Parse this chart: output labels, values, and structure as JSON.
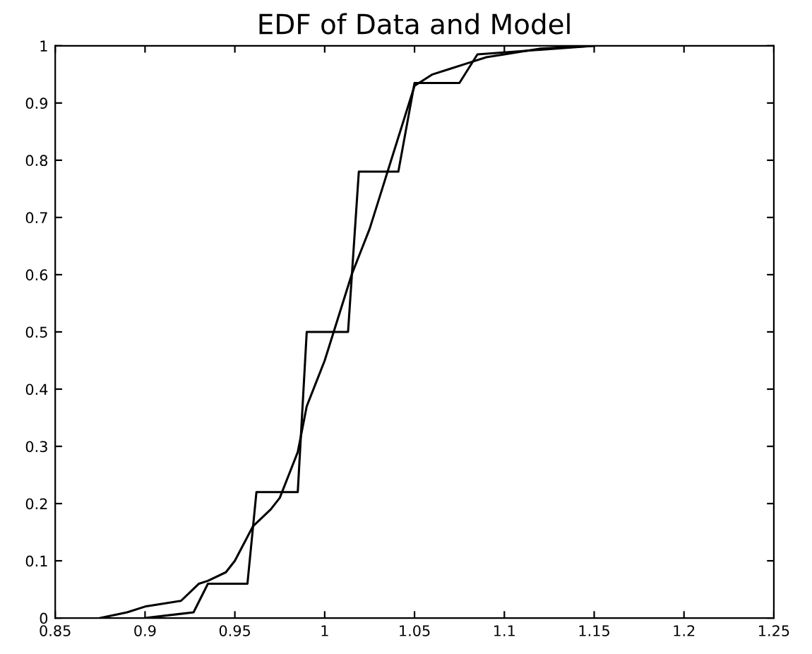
{
  "chart_data": {
    "type": "line",
    "title": "EDF of Data and Model",
    "series": [
      {
        "color": "#000000",
        "x": [
          0.875,
          0.89,
          0.9,
          0.91,
          0.92,
          0.925,
          0.93,
          0.935,
          0.945,
          0.95,
          0.955,
          0.96,
          0.97,
          0.975,
          0.98,
          0.985,
          0.99,
          0.995,
          1.0,
          1.005,
          1.01,
          1.015,
          1.02,
          1.025,
          1.03,
          1.035,
          1.04,
          1.045,
          1.05,
          1.06,
          1.07,
          1.08,
          1.09,
          1.1,
          1.12,
          1.15
        ],
        "values": [
          0,
          0.01,
          0.02,
          0.025,
          0.03,
          0.045,
          0.06,
          0.065,
          0.08,
          0.1,
          0.13,
          0.16,
          0.19,
          0.21,
          0.25,
          0.29,
          0.37,
          0.41,
          0.45,
          0.5,
          0.55,
          0.6,
          0.64,
          0.68,
          0.73,
          0.78,
          0.83,
          0.88,
          0.93,
          0.95,
          0.96,
          0.97,
          0.98,
          0.985,
          0.995,
          1
        ]
      },
      {
        "color": "#000000",
        "x": [
          0.9,
          0.927,
          0.935,
          0.957,
          0.962,
          0.985,
          0.99,
          1.013,
          1.019,
          1.041,
          1.05,
          1.075,
          1.085,
          1.15
        ],
        "values": [
          0,
          0.01,
          0.06,
          0.06,
          0.22,
          0.22,
          0.5,
          0.5,
          0.78,
          0.78,
          0.935,
          0.935,
          0.985,
          1
        ]
      }
    ],
    "xlim": [
      0.85,
      1.25
    ],
    "xticks": [
      0.85,
      0.9,
      0.95,
      1,
      1.05,
      1.1,
      1.15,
      1.2,
      1.25
    ],
    "ylim": [
      0,
      1
    ],
    "yticks": [
      0,
      0.1,
      0.2,
      0.3,
      0.4,
      0.5,
      0.6,
      0.7,
      0.8,
      0.9,
      1
    ],
    "grid": false,
    "legend": false
  }
}
